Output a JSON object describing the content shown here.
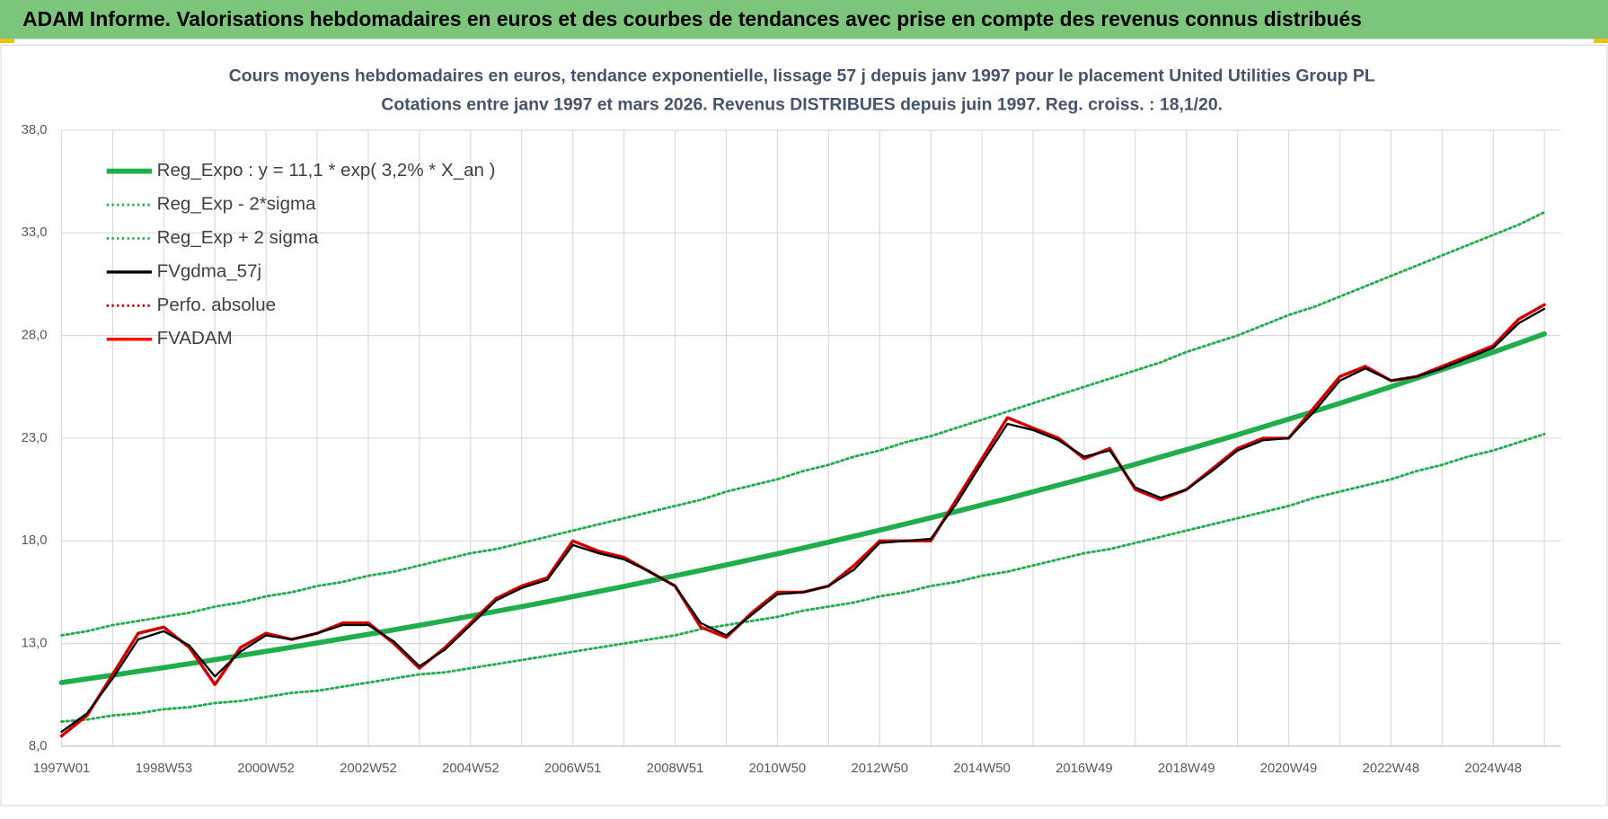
{
  "header": {
    "title": "ADAM Informe. Valorisations hebdomadaires en euros et des courbes de tendances avec prise en compte des revenus connus distribués"
  },
  "chart_data": {
    "type": "line",
    "title": "Cours moyens hebdomadaires en euros, tendance exponentielle, lissage 57 j depuis janv 1997  pour le placement United Utilities Group PL",
    "subtitle": "Cotations entre janv 1997 et mars 2026. Revenus DISTRIBUES depuis juin 1997. Reg. croiss. : 18,1/20.",
    "categories": [
      "1997W01",
      null,
      null,
      null,
      "1998W53",
      null,
      null,
      null,
      "2000W52",
      null,
      null,
      null,
      "2002W52",
      null,
      null,
      null,
      "2004W52",
      null,
      null,
      null,
      "2006W51",
      null,
      null,
      null,
      "2008W51",
      null,
      null,
      null,
      "2010W50",
      null,
      null,
      null,
      "2012W50",
      null,
      null,
      null,
      "2014W50",
      null,
      null,
      null,
      "2016W49",
      null,
      null,
      null,
      "2018W49",
      null,
      null,
      null,
      "2020W49",
      null,
      null,
      null,
      "2022W48",
      null,
      null,
      null,
      "2024W48",
      null,
      null
    ],
    "ylim": [
      8,
      38
    ],
    "yticks": [
      {
        "value": 8,
        "label": "8,0"
      },
      {
        "value": 13,
        "label": "13,0"
      },
      {
        "value": 18,
        "label": "18,0"
      },
      {
        "value": 23,
        "label": "23,0"
      },
      {
        "value": 28,
        "label": "28,0"
      },
      {
        "value": 33,
        "label": "33,0"
      },
      {
        "value": 38,
        "label": "38,0"
      }
    ],
    "grid": true,
    "legend": "upper left",
    "series": [
      {
        "name": "Reg_Expo : y = 11,1 * exp( 3,2% *  X_an )",
        "color": "#1fae4b",
        "style": "solid",
        "values": [
          11.1,
          11.28,
          11.46,
          11.65,
          11.83,
          12.02,
          12.22,
          12.42,
          12.62,
          12.82,
          13.03,
          13.24,
          13.45,
          13.67,
          13.89,
          14.11,
          14.34,
          14.57,
          14.8,
          15.04,
          15.29,
          15.53,
          15.78,
          16.04,
          16.3,
          16.56,
          16.83,
          17.1,
          17.37,
          17.65,
          17.94,
          18.23,
          18.52,
          18.82,
          19.12,
          19.43,
          19.75,
          20.06,
          20.39,
          20.72,
          21.05,
          21.39,
          21.73,
          22.09,
          22.44,
          22.8,
          23.17,
          23.55,
          23.93,
          24.31,
          24.7,
          25.1,
          25.51,
          25.92,
          26.34,
          26.76,
          27.19,
          27.63,
          28.08
        ]
      },
      {
        "name": "Reg_Exp - 2*sigma",
        "color": "#1fae4b",
        "style": "dotted",
        "values": [
          9.2,
          9.3,
          9.5,
          9.6,
          9.8,
          9.9,
          10.1,
          10.2,
          10.4,
          10.6,
          10.7,
          10.9,
          11.1,
          11.3,
          11.5,
          11.6,
          11.8,
          12.0,
          12.2,
          12.4,
          12.6,
          12.8,
          13.0,
          13.2,
          13.4,
          13.7,
          13.9,
          14.1,
          14.3,
          14.6,
          14.8,
          15.0,
          15.3,
          15.5,
          15.8,
          16.0,
          16.3,
          16.5,
          16.8,
          17.1,
          17.4,
          17.6,
          17.9,
          18.2,
          18.5,
          18.8,
          19.1,
          19.4,
          19.7,
          20.1,
          20.4,
          20.7,
          21.0,
          21.4,
          21.7,
          22.1,
          22.4,
          22.8,
          23.2
        ]
      },
      {
        "name": "Reg_Exp + 2 sigma",
        "color": "#1fae4b",
        "style": "dotted",
        "values": [
          13.4,
          13.6,
          13.9,
          14.1,
          14.3,
          14.5,
          14.8,
          15.0,
          15.3,
          15.5,
          15.8,
          16.0,
          16.3,
          16.5,
          16.8,
          17.1,
          17.4,
          17.6,
          17.9,
          18.2,
          18.5,
          18.8,
          19.1,
          19.4,
          19.7,
          20.0,
          20.4,
          20.7,
          21.0,
          21.4,
          21.7,
          22.1,
          22.4,
          22.8,
          23.1,
          23.5,
          23.9,
          24.3,
          24.7,
          25.1,
          25.5,
          25.9,
          26.3,
          26.7,
          27.2,
          27.6,
          28.0,
          28.5,
          29.0,
          29.4,
          29.9,
          30.4,
          30.9,
          31.4,
          31.9,
          32.4,
          32.9,
          33.4,
          34.0
        ]
      },
      {
        "name": "FVgdma_57j",
        "color": "#000000",
        "style": "solid",
        "values": [
          8.7,
          9.6,
          11.3,
          13.2,
          13.6,
          12.9,
          11.4,
          12.6,
          13.4,
          13.2,
          13.5,
          13.9,
          13.9,
          13.1,
          11.9,
          12.7,
          13.9,
          15.1,
          15.7,
          16.1,
          17.8,
          17.4,
          17.1,
          16.5,
          15.8,
          14.0,
          13.4,
          14.4,
          15.4,
          15.5,
          15.8,
          16.6,
          17.9,
          18.0,
          18.1,
          19.8,
          21.8,
          23.7,
          23.4,
          22.9,
          22.1,
          22.4,
          20.6,
          20.1,
          20.5,
          21.4,
          22.4,
          22.9,
          23.0,
          24.3,
          25.8,
          26.4,
          25.8,
          26.0,
          26.4,
          26.9,
          27.4,
          28.6,
          29.3
        ]
      },
      {
        "name": "Perfo. absolue",
        "color": "#c00000",
        "style": "dotted",
        "values": [
          8.5,
          9.5,
          11.5,
          13.5,
          13.8,
          12.8,
          11.0,
          12.8,
          13.5,
          13.2,
          13.5,
          14.0,
          14.0,
          13.0,
          11.8,
          12.8,
          14.0,
          15.2,
          15.8,
          16.2,
          18.0,
          17.5,
          17.2,
          16.5,
          15.8,
          13.8,
          13.3,
          14.5,
          15.5,
          15.5,
          15.8,
          16.8,
          18.0,
          18.0,
          18.0,
          20.0,
          22.0,
          24.0,
          23.5,
          23.0,
          22.0,
          22.5,
          20.5,
          20.0,
          20.5,
          21.5,
          22.5,
          23.0,
          23.0,
          24.5,
          26.0,
          26.5,
          25.8,
          26.0,
          26.5,
          27.0,
          27.5,
          28.8,
          29.5
        ]
      },
      {
        "name": "FVADAM",
        "color": "#ff0000",
        "style": "solid",
        "values": [
          8.5,
          9.5,
          11.5,
          13.5,
          13.8,
          12.8,
          11.0,
          12.8,
          13.5,
          13.2,
          13.5,
          14.0,
          14.0,
          13.0,
          11.8,
          12.8,
          14.0,
          15.2,
          15.8,
          16.2,
          18.0,
          17.5,
          17.2,
          16.5,
          15.8,
          13.8,
          13.3,
          14.5,
          15.5,
          15.5,
          15.8,
          16.8,
          18.0,
          18.0,
          18.0,
          20.0,
          22.0,
          24.0,
          23.5,
          23.0,
          22.0,
          22.5,
          20.5,
          20.0,
          20.5,
          21.5,
          22.5,
          23.0,
          23.0,
          24.5,
          26.0,
          26.5,
          25.8,
          26.0,
          26.5,
          27.0,
          27.5,
          28.8,
          29.5
        ]
      }
    ]
  }
}
